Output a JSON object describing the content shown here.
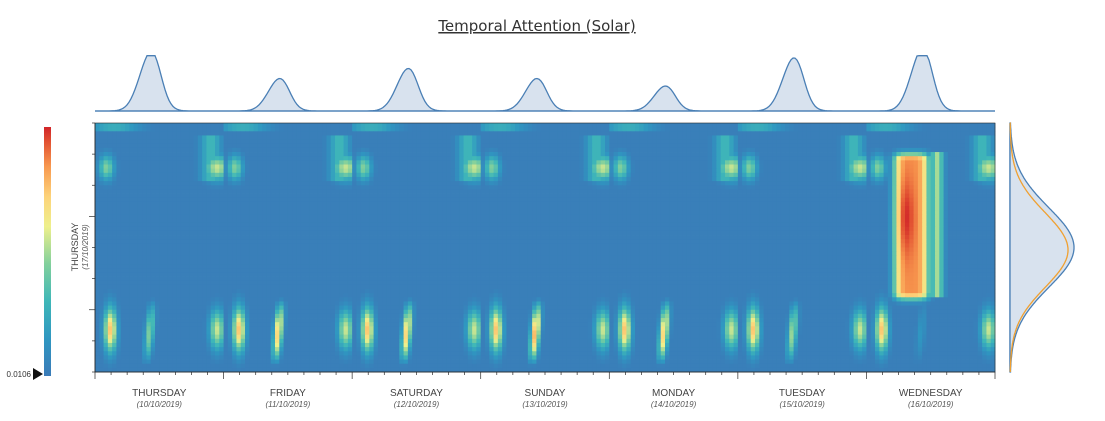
{
  "chart_data": {
    "type": "heatmap",
    "title": "Temporal Attention (Solar)",
    "x_days": [
      {
        "day": "THURSDAY",
        "date": "(10/10/2019)"
      },
      {
        "day": "FRIDAY",
        "date": "(11/10/2019)"
      },
      {
        "day": "SATURDAY",
        "date": "(12/10/2019)"
      },
      {
        "day": "SUNDAY",
        "date": "(13/10/2019)"
      },
      {
        "day": "MONDAY",
        "date": "(14/10/2019)"
      },
      {
        "day": "TUESDAY",
        "date": "(15/10/2019)"
      },
      {
        "day": "WEDNESDAY",
        "date": "(16/10/2019)"
      }
    ],
    "y_label": {
      "day": "THURSDAY",
      "date": "(17/10/2019)"
    },
    "colorbar": {
      "min_label": "0.0106",
      "colormap": "Spectral_r"
    },
    "top_marginal_peaks": [
      0.95,
      0.52,
      0.68,
      0.52,
      0.4,
      0.85,
      1.0
    ],
    "day_spots": [
      {
        "cx": 0.09,
        "cy": 0.18,
        "v": 0.45,
        "sx": 0.06,
        "sy": 0.05
      },
      {
        "cx": 0.12,
        "cy": 0.83,
        "v": 0.75,
        "sx": 0.05,
        "sy": 0.09
      },
      {
        "cx": 0.95,
        "cy": 0.18,
        "v": 0.55,
        "sx": 0.1,
        "sy": 0.05
      },
      {
        "cx": 0.95,
        "cy": 0.83,
        "v": 0.55,
        "sx": 0.06,
        "sy": 0.08
      }
    ],
    "wednesday_block": {
      "v": 1.0,
      "y_start": 0.15,
      "y_end": 0.68
    },
    "right_marginal_series": [
      {
        "color": "#4a7fb5"
      },
      {
        "color": "#f0a030"
      }
    ],
    "colors": {
      "line": "#4a7fb5",
      "fill": "#d8e2ee",
      "axis": "#333333",
      "secondary": "#f0a030"
    }
  }
}
